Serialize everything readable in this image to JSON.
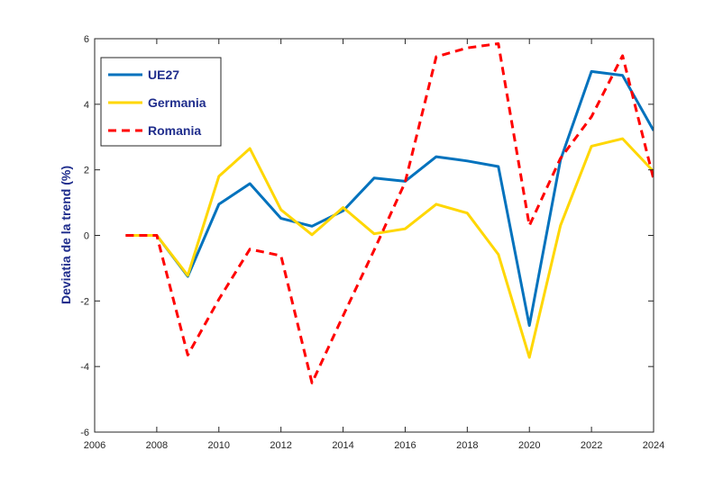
{
  "chart_data": {
    "type": "line",
    "title": "",
    "xlabel": "",
    "ylabel": "Deviatia de la trend (%)",
    "xlim": [
      2006,
      2024
    ],
    "ylim": [
      -6,
      6
    ],
    "xticks": [
      2006,
      2008,
      2010,
      2012,
      2014,
      2016,
      2018,
      2020,
      2022,
      2024
    ],
    "yticks": [
      -6,
      -4,
      -2,
      0,
      2,
      4,
      6
    ],
    "grid": false,
    "legend": "top-left",
    "x": [
      2007,
      2008,
      2009,
      2010,
      2011,
      2012,
      2013,
      2014,
      2015,
      2016,
      2017,
      2018,
      2019,
      2020,
      2021,
      2022,
      2023,
      2024
    ],
    "series": [
      {
        "name": "UE27",
        "color": "#0072bd",
        "style": "solid",
        "values": [
          0,
          0,
          -1.25,
          0.95,
          1.58,
          0.52,
          0.28,
          0.75,
          1.75,
          1.65,
          2.4,
          2.27,
          2.1,
          -2.75,
          2.3,
          5.0,
          4.88,
          3.2
        ]
      },
      {
        "name": "Germania",
        "color": "#ffd700",
        "style": "solid",
        "values": [
          0,
          0,
          -1.22,
          1.8,
          2.65,
          0.78,
          0.02,
          0.85,
          0.05,
          0.2,
          0.95,
          0.68,
          -0.58,
          -3.72,
          0.3,
          2.72,
          2.95,
          1.95
        ]
      },
      {
        "name": "Romania",
        "color": "#ff0000",
        "style": "dashed",
        "values": [
          0,
          0,
          -3.65,
          -1.95,
          -0.42,
          -0.62,
          -4.5,
          -2.45,
          -0.45,
          1.62,
          5.45,
          5.72,
          5.85,
          0.3,
          2.35,
          3.62,
          5.48,
          1.72
        ]
      }
    ]
  }
}
